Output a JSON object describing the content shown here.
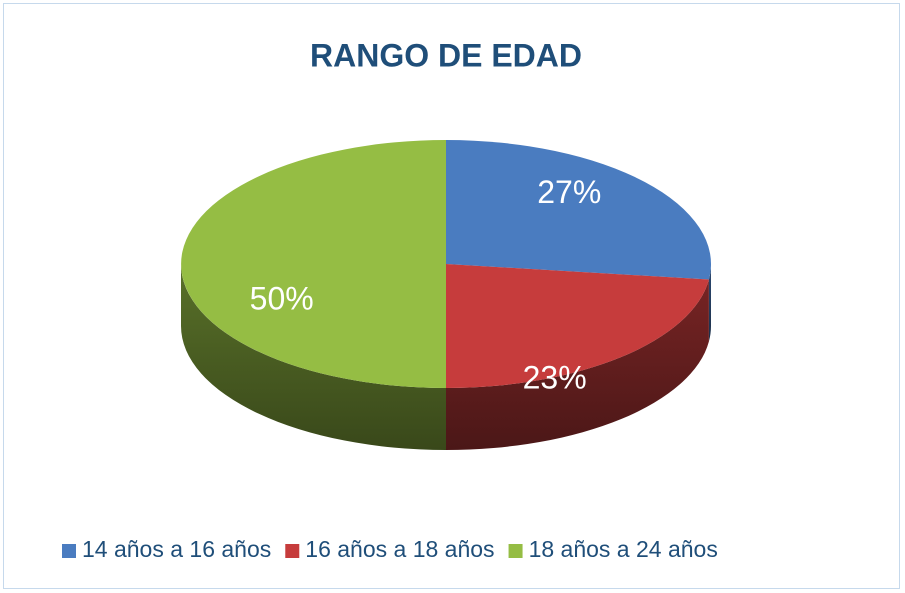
{
  "chart_data": {
    "type": "pie",
    "title": "RANGO DE EDAD",
    "categories": [
      "14 años a 16 años",
      "16 años a 18 años",
      "18 años a 24 años"
    ],
    "values": [
      27,
      23,
      50
    ],
    "value_labels": [
      "27%",
      "23%",
      "50%"
    ],
    "colors": [
      "#4a7cc0",
      "#c63c3c",
      "#95bd44"
    ],
    "legend": "bottom"
  }
}
